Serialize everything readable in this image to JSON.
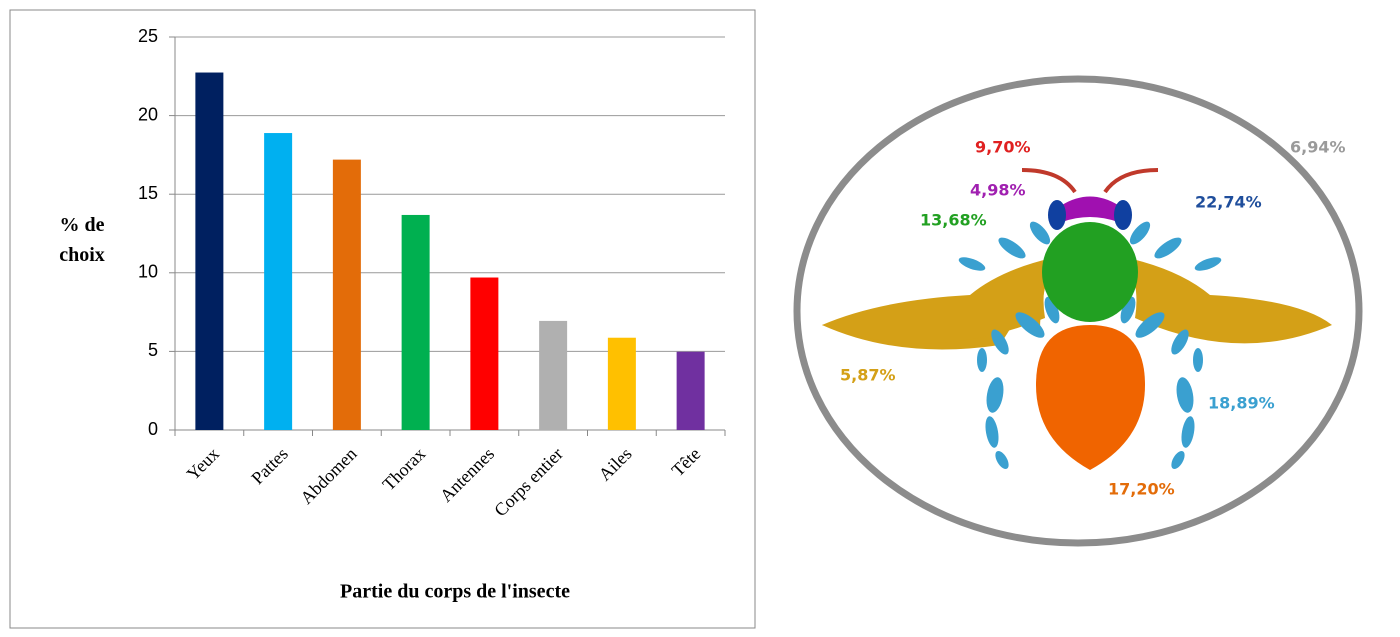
{
  "chart_data": {
    "type": "bar",
    "x_label": "Partie du corps de l'insecte",
    "y_label": "% de choix",
    "categories": [
      "Yeux",
      "Pattes",
      "Abdomen",
      "Thorax",
      "Antennes",
      "Corps entier",
      "Ailes",
      "Tête"
    ],
    "values": [
      22.74,
      18.89,
      17.2,
      13.68,
      9.7,
      6.94,
      5.87,
      4.98
    ],
    "value_labels": [
      "22,74%",
      "18,89%",
      "17,20%",
      "13,68%",
      "9,70%",
      "6,94%",
      "5,87%",
      "4,98%"
    ],
    "colors": [
      "#002060",
      "#00b0f0",
      "#e36c09",
      "#00b050",
      "#ff0000",
      "#b0b0b0",
      "#ffc000",
      "#7030a0"
    ],
    "ylim": [
      0,
      25
    ],
    "yticks": [
      0,
      5,
      10,
      15,
      20,
      25
    ],
    "grid": true
  }
}
